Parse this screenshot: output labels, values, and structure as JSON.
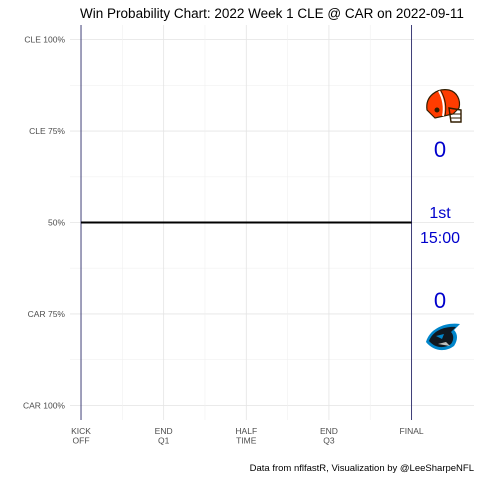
{
  "chart_data": {
    "type": "line",
    "title": "Win Probability Chart: 2022 Week 1 CLE @ CAR on 2022-09-11",
    "caption": "Data from nflfastR, Visualization by @LeeSharpeNFL",
    "xlabel": "",
    "ylabel": "",
    "x_ticks": [
      {
        "value": 0,
        "label": [
          "KICK",
          "OFF"
        ]
      },
      {
        "value": 900,
        "label": [
          "END",
          "Q1"
        ]
      },
      {
        "value": 1800,
        "label": [
          "HALF",
          "TIME"
        ]
      },
      {
        "value": 2700,
        "label": [
          "END",
          "Q3"
        ]
      },
      {
        "value": 3600,
        "label": [
          "FINAL"
        ]
      }
    ],
    "xlim": [
      -120,
      4280
    ],
    "y_ticks": [
      {
        "value": 1.0,
        "label": "CLE 100%"
      },
      {
        "value": 0.75,
        "label": "CLE 75%"
      },
      {
        "value": 0.5,
        "label": "50%"
      },
      {
        "value": 0.25,
        "label": "CAR 75%"
      },
      {
        "value": 0.0,
        "label": "CAR 100%"
      }
    ],
    "ylim": [
      -0.04,
      1.04
    ],
    "grid": true,
    "series": [
      {
        "x": [
          0,
          3600
        ],
        "y": [
          0.5,
          0.5
        ],
        "color": "#000000"
      }
    ],
    "reference_lines_x": [
      0,
      3600
    ],
    "reference_line_color": "#2b2b6b",
    "home_team": {
      "abbr": "CAR",
      "score": "0",
      "logo": "carolina-panthers-logo"
    },
    "away_team": {
      "abbr": "CLE",
      "score": "0",
      "logo": "cleveland-browns-helmet-logo"
    },
    "game_clock": {
      "quarter": "1st",
      "time": "15:00"
    },
    "annotation_color": "#0000cc",
    "colors": {
      "browns_orange": "#ff3c00",
      "browns_brown": "#311d00",
      "panthers_blue": "#0085ca",
      "panthers_black": "#101820",
      "panthers_silver": "#bfc0bf"
    }
  }
}
